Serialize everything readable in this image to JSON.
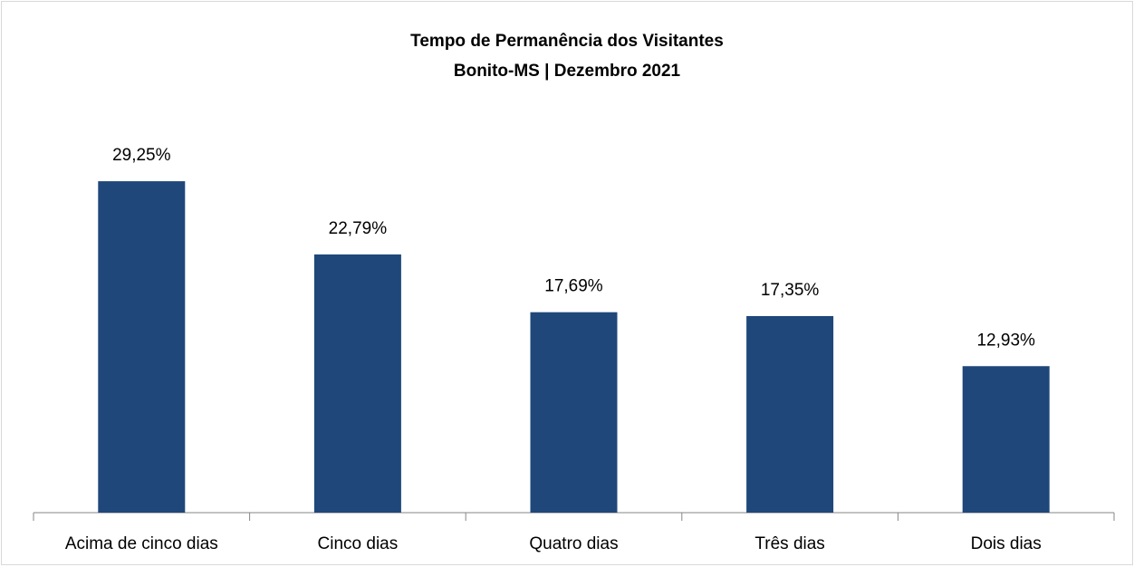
{
  "chart_data": {
    "type": "bar",
    "title": "Tempo de Permanência dos Visitantes",
    "subtitle": "Bonito-MS | Dezembro 2021",
    "categories": [
      "Acima de cinco dias",
      "Cinco dias",
      "Quatro dias",
      "Três dias",
      "Dois dias"
    ],
    "values": [
      29.25,
      22.79,
      17.69,
      17.35,
      12.93
    ],
    "value_labels": [
      "29,25%",
      "22,79%",
      "17,69%",
      "17,35%",
      "12,93%"
    ],
    "color": "#1f477a"
  }
}
